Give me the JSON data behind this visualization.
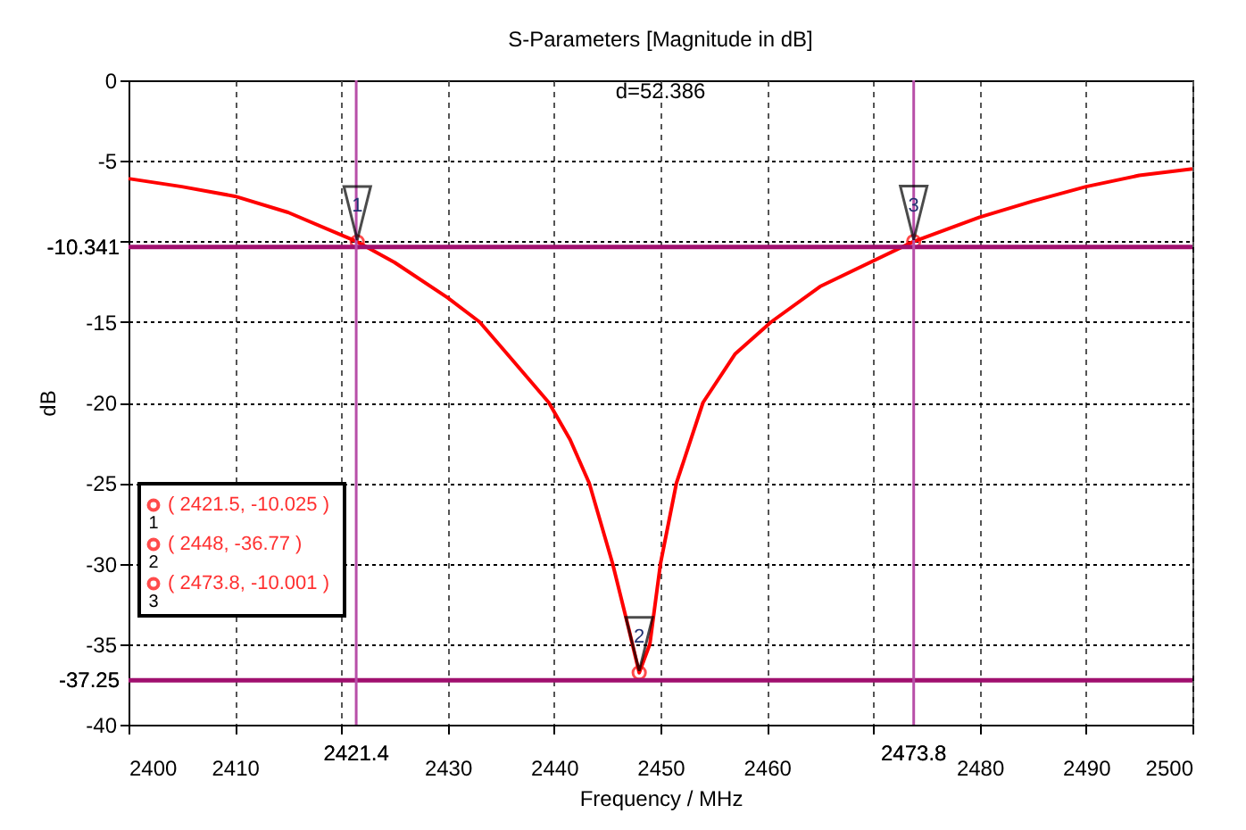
{
  "chart_data": {
    "type": "line",
    "title": "S-Parameters [Magnitude in dB]",
    "xlabel": "Frequency / MHz",
    "ylabel": "dB",
    "series": [
      {
        "color": "#ff0000",
        "x": [
          2400,
          2405,
          2410,
          2415,
          2421.5,
          2425,
          2430,
          2433,
          2436,
          2439.5,
          2441.5,
          2443.3,
          2445.5,
          2447,
          2448,
          2449,
          2450,
          2451.5,
          2454,
          2457,
          2460.4,
          2465,
          2473.8,
          2480,
          2485,
          2490,
          2495,
          2500
        ],
        "values": [
          -6.1,
          -6.6,
          -7.2,
          -8.2,
          -10.025,
          -11.3,
          -13.5,
          -15,
          -17.3,
          -20,
          -22.3,
          -25,
          -30,
          -34,
          -36.77,
          -35,
          -30,
          -25,
          -20,
          -17,
          -15,
          -12.8,
          -10.001,
          -8.5,
          -7.5,
          -6.6,
          -5.9,
          -5.5
        ]
      },
      {
        "type": "scatter",
        "color": "#ff0000",
        "marker": "circle",
        "x": [
          2421.5,
          2448,
          2473.8
        ],
        "values": [
          -10.025,
          -36.77,
          -10.001
        ]
      }
    ],
    "xlim": [
      2400,
      2500
    ],
    "xticks": [
      2400,
      2410,
      {
        "value": 2420,
        "label": null
      },
      2430,
      2440,
      2450,
      2460,
      {
        "value": 2470,
        "label": null
      },
      2480,
      2490,
      2500
    ],
    "ylim": [
      -40,
      0
    ],
    "yticks": [
      -40,
      -35,
      -30,
      -25,
      -20,
      -15,
      {
        "value": -10,
        "label": null
      },
      -5,
      0
    ],
    "grid": true,
    "ref_lines": [
      {
        "axis": "y",
        "value": -10.341,
        "label": "-10.341",
        "color": "#a0106f"
      },
      {
        "axis": "y",
        "value": -37.25,
        "label": "-37.25",
        "color": "#a0106f"
      },
      {
        "axis": "x",
        "value": 2421.4,
        "label": "2421.4",
        "color": "#b84fa8"
      },
      {
        "axis": "x",
        "value": 2473.8,
        "label": "2473.8",
        "color": "#b84fa8"
      }
    ],
    "annotations": [
      {
        "text": "1",
        "x": 2421.5,
        "y": -10.025
      },
      {
        "text": "2",
        "x": 2448,
        "y": -36.77
      },
      {
        "text": "3",
        "x": 2473.8,
        "y": -10.001
      },
      "( 2421.5, -10.025 )",
      "( 2448, -36.77 )",
      "( 2473.8, -10.001 )",
      "d=52.386"
    ]
  }
}
